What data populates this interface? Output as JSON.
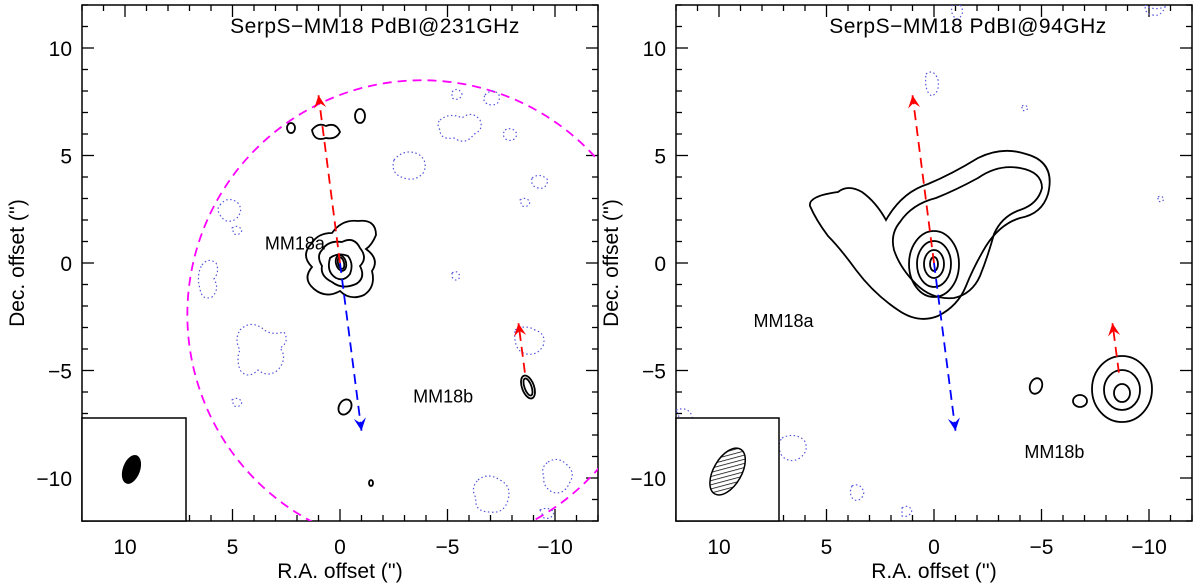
{
  "chart_data": [
    {
      "type": "contour",
      "title": "SerpS−MM18 PdBI@231GHz",
      "xlabel": "R.A. offset ('')",
      "ylabel": "Dec. offset ('')",
      "xlim": [
        12,
        -12
      ],
      "ylim": [
        -12,
        12
      ],
      "xticks": [
        10,
        5,
        0,
        -5,
        -10
      ],
      "yticks": [
        10,
        5,
        0,
        -5,
        -10
      ],
      "xtick_labels": [
        "10",
        "5",
        "0",
        "−5",
        "−10"
      ],
      "ytick_labels": [
        "10",
        "5",
        "0",
        "−5",
        "−10"
      ],
      "sources": [
        {
          "name": "MM18a",
          "ra": 0,
          "dec": 0,
          "label_ra": 2.1,
          "label_dec": 0.9
        },
        {
          "name": "MM18b",
          "ra": -8.6,
          "dec": -5.8,
          "label_ra": -4.8,
          "label_dec": -6.2
        }
      ],
      "outflows": [
        {
          "lobe": "red",
          "from": [
            0,
            0
          ],
          "to": [
            1.0,
            7.8
          ]
        },
        {
          "lobe": "blue",
          "from": [
            0,
            0
          ],
          "to": [
            -1.0,
            -7.8
          ]
        },
        {
          "lobe": "red",
          "from": [
            -8.6,
            -5.1
          ],
          "to": [
            -8.3,
            -2.8
          ]
        }
      ],
      "primary_beam": {
        "center": [
          -3.8,
          -2.4
        ],
        "radius": 10.9
      },
      "synth_beam": {
        "ra": 9.7,
        "dec": -9.6,
        "major": 0.7,
        "minor": 0.4,
        "pa": 20
      },
      "colors": {
        "red_lobe": "#ff0000",
        "blue_lobe": "#0000ff",
        "primary_beam": "#ff00ff",
        "neg_contour": "#5555dd"
      }
    },
    {
      "type": "contour",
      "title": "SerpS−MM18 PdBI@94GHz",
      "xlabel": "R.A. offset ('')",
      "ylabel": "Dec. offset ('')",
      "xlim": [
        12,
        -12
      ],
      "ylim": [
        -12,
        12
      ],
      "xticks": [
        10,
        5,
        0,
        -5,
        -10
      ],
      "yticks": [
        10,
        5,
        0,
        -5,
        -10
      ],
      "xtick_labels": [
        "10",
        "5",
        "0",
        "−5",
        "−10"
      ],
      "ytick_labels": [
        "10",
        "5",
        "0",
        "−5",
        "−10"
      ],
      "sources": [
        {
          "name": "MM18a",
          "ra": 0,
          "dec": 0,
          "label_ra": 7.0,
          "label_dec": -2.7
        },
        {
          "name": "MM18b",
          "ra": -8.6,
          "dec": -5.8,
          "label_ra": -5.6,
          "label_dec": -8.8
        }
      ],
      "outflows": [
        {
          "lobe": "red",
          "from": [
            0,
            0
          ],
          "to": [
            1.0,
            7.8
          ]
        },
        {
          "lobe": "blue",
          "from": [
            0,
            0
          ],
          "to": [
            -1.0,
            -7.8
          ]
        },
        {
          "lobe": "red",
          "from": [
            -8.6,
            -5.1
          ],
          "to": [
            -8.3,
            -2.8
          ]
        }
      ],
      "synth_beam": {
        "ra": 9.6,
        "dec": -9.7,
        "major": 1.2,
        "minor": 0.65,
        "pa": 30
      },
      "colors": {
        "red_lobe": "#ff0000",
        "blue_lobe": "#0000ff",
        "neg_contour": "#5555dd"
      }
    }
  ]
}
